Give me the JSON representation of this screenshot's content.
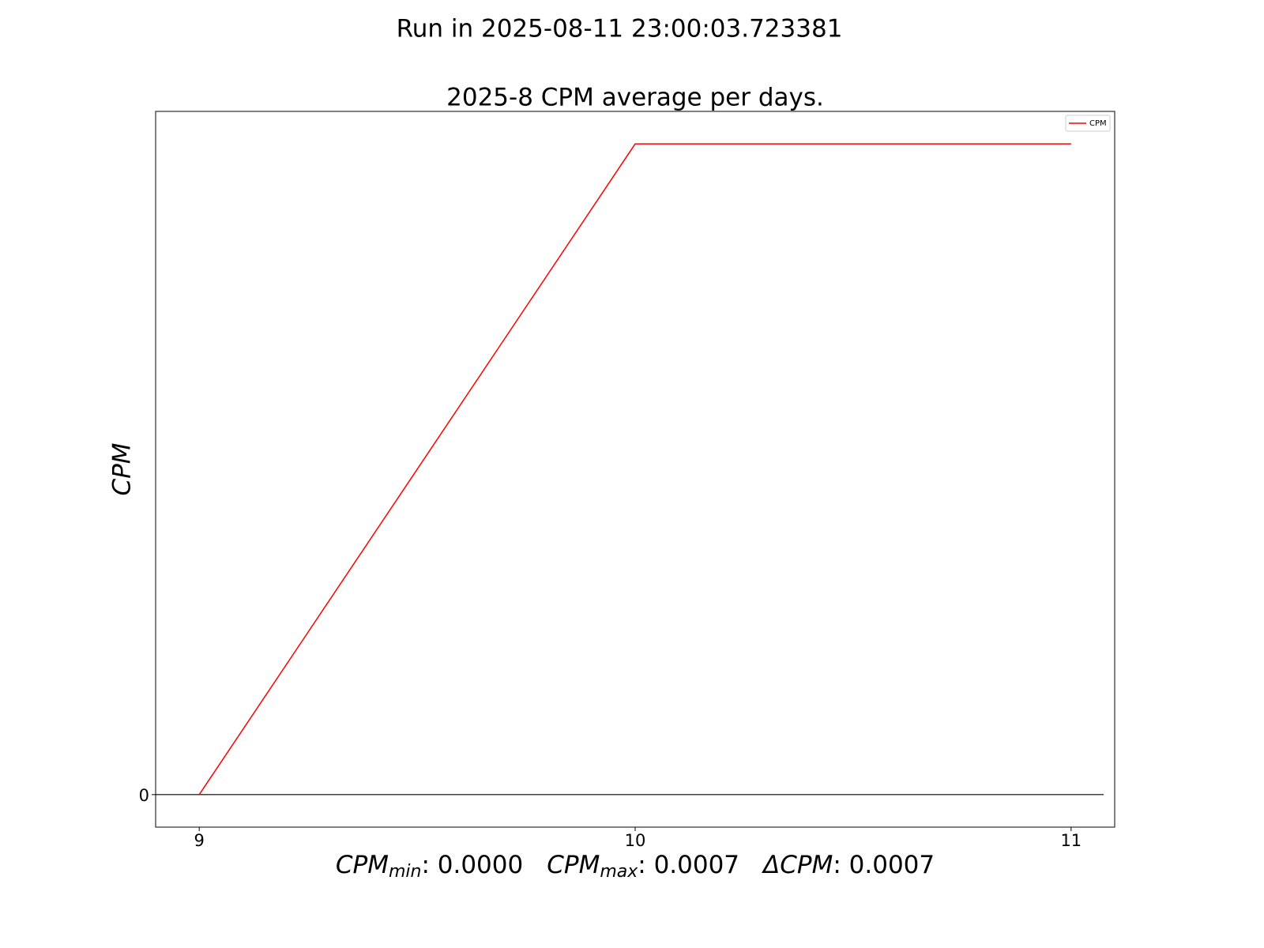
{
  "chart_data": {
    "type": "line",
    "suptitle": "Run in 2025-08-11 23:00:03.723381",
    "title": "2025-8 CPM average per days.",
    "y_label": "CPM",
    "x": [
      9,
      10,
      11
    ],
    "series": [
      {
        "name": "CPM",
        "color": "#ff0000",
        "values": [
          0,
          0.0007,
          0.0007
        ]
      }
    ],
    "xlim": [
      8.9,
      11.1
    ],
    "ylim": [
      -3.5e-05,
      0.000735
    ],
    "xticks": [
      9,
      10,
      11
    ],
    "yticks": [
      0
    ],
    "hline": 0,
    "hline_color": "#000000",
    "legend": "upper right",
    "grid": false,
    "stats": [
      {
        "symbol": "CPM",
        "subscript": "min",
        "text": ": 0.0000"
      },
      {
        "symbol": "CPM",
        "subscript": "max",
        "text": ": 0.0007"
      },
      {
        "symbol": "ΔCPM",
        "text": ": 0.0007"
      }
    ]
  }
}
